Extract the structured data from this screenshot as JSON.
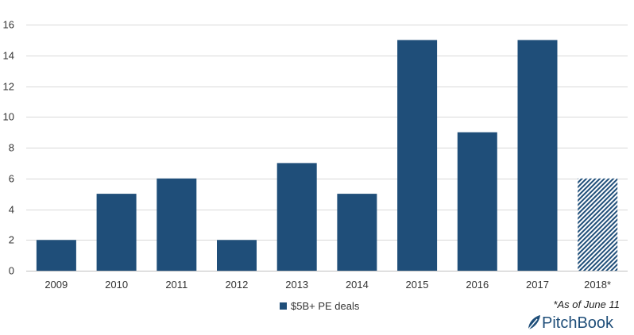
{
  "chart_data": {
    "type": "bar",
    "title": "",
    "xlabel": "",
    "ylabel": "",
    "categories": [
      "2009",
      "2010",
      "2011",
      "2012",
      "2013",
      "2014",
      "2015",
      "2016",
      "2017",
      "2018*"
    ],
    "series": [
      {
        "name": "$5B+ PE deals",
        "values": [
          2,
          5,
          6,
          2,
          7,
          5,
          15,
          9,
          15,
          6
        ],
        "color": "#1f4e79"
      }
    ],
    "partial_categories": [
      "2018*"
    ],
    "partial_fill": "diagonal-hatch",
    "ylim": [
      0,
      16
    ],
    "yticks": [
      0,
      2,
      4,
      6,
      8,
      10,
      12,
      14,
      16
    ],
    "grid": true,
    "legend_position": "bottom"
  },
  "footnote": "*As of June 11",
  "brand": {
    "name": "PitchBook",
    "logo_icon": "pitchbook-leaf-icon",
    "color": "#1f4e79"
  },
  "colors": {
    "bar": "#1f4e79",
    "grid": "#d9d9d9",
    "axis_text": "#333333"
  }
}
